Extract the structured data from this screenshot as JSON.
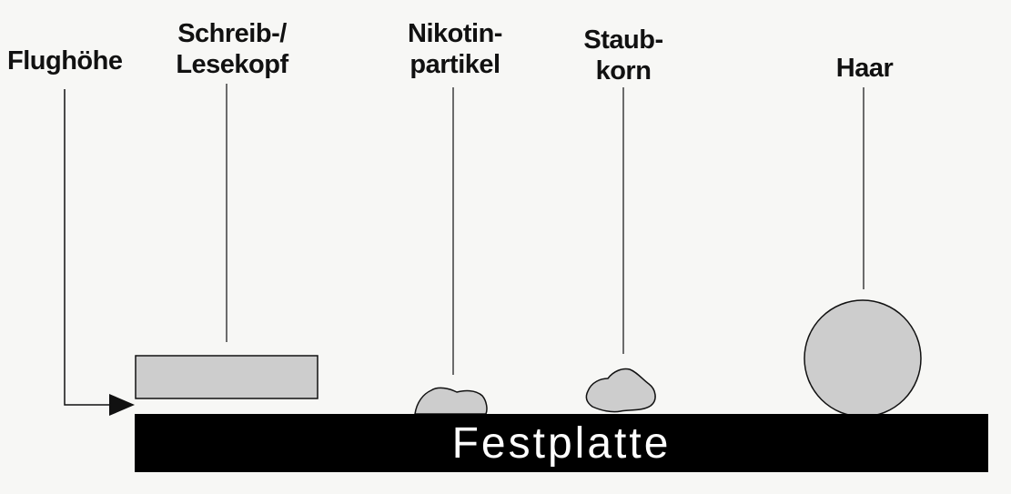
{
  "labels": {
    "flughoehe": "Flughöhe",
    "kopf_line1": "Schreib-/",
    "kopf_line2": "Lesekopf",
    "nikotin_line1": "Nikotin-",
    "nikotin_line2": "partikel",
    "staub_line1": "Staub-",
    "staub_line2": "korn",
    "haar": "Haar",
    "festplatte": "Festplatte"
  },
  "colors": {
    "shape_fill": "#cdcdcd",
    "stroke": "#111111",
    "disk": "#000000",
    "background": "#f7f7f5"
  }
}
